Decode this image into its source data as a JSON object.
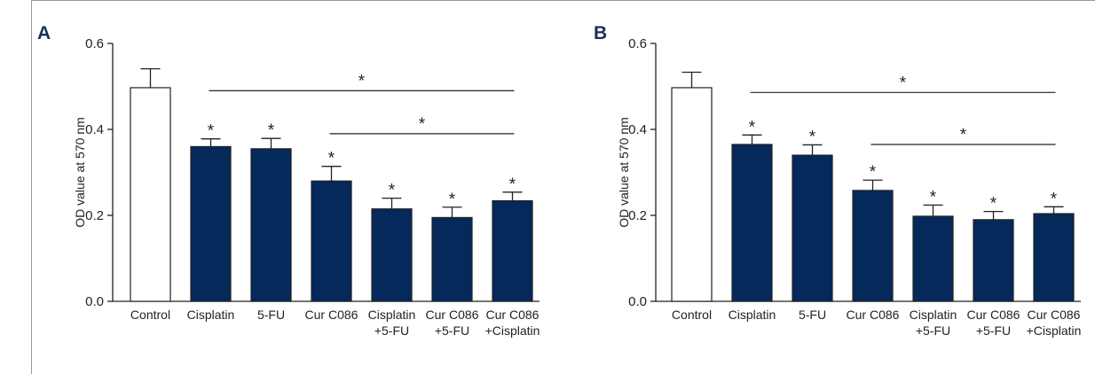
{
  "chart_data": [
    {
      "type": "bar",
      "panel_label": "A",
      "ylabel": "OD value at 570 nm",
      "ylim": [
        0,
        0.6
      ],
      "yticks": [
        "0.0",
        "0.2",
        "0.4",
        "0.6"
      ],
      "categories": [
        [
          "Control"
        ],
        [
          "Cisplatin"
        ],
        [
          "5-FU"
        ],
        [
          "Cur C086"
        ],
        [
          "Cisplatin",
          "+5-FU"
        ],
        [
          "Cur C086",
          "+5-FU"
        ],
        [
          "Cur C086",
          "+Cisplatin"
        ]
      ],
      "values": [
        0.497,
        0.36,
        0.355,
        0.28,
        0.215,
        0.195,
        0.234
      ],
      "errors": [
        0.044,
        0.018,
        0.024,
        0.034,
        0.025,
        0.024,
        0.02
      ],
      "bar_colors": [
        "#ffffff",
        "#04295a",
        "#04295a",
        "#04295a",
        "#04295a",
        "#04295a",
        "#04295a"
      ],
      "significance_marks": [
        null,
        "*",
        "*",
        "*",
        "*",
        "*",
        "*"
      ],
      "brackets": [
        {
          "from": 1,
          "to": 6,
          "y": 0.49,
          "label": "*"
        },
        {
          "from": 3,
          "to": 6,
          "y": 0.39,
          "label": "*"
        }
      ]
    },
    {
      "type": "bar",
      "panel_label": "B",
      "ylabel": "OD value at 570 nm",
      "ylim": [
        0,
        0.6
      ],
      "yticks": [
        "0.0",
        "0.2",
        "0.4",
        "0.6"
      ],
      "categories": [
        [
          "Control"
        ],
        [
          "Cisplatin"
        ],
        [
          "5-FU"
        ],
        [
          "Cur C086"
        ],
        [
          "Cisplatin",
          "+5-FU"
        ],
        [
          "Cur C086",
          "+5-FU"
        ],
        [
          "Cur C086",
          "+Cisplatin"
        ]
      ],
      "values": [
        0.497,
        0.365,
        0.34,
        0.258,
        0.198,
        0.19,
        0.204
      ],
      "errors": [
        0.036,
        0.022,
        0.024,
        0.024,
        0.026,
        0.019,
        0.016
      ],
      "bar_colors": [
        "#ffffff",
        "#04295a",
        "#04295a",
        "#04295a",
        "#04295a",
        "#04295a",
        "#04295a"
      ],
      "significance_marks": [
        null,
        "*",
        "*",
        "*",
        "*",
        "*",
        "*"
      ],
      "brackets": [
        {
          "from": 1,
          "to": 6,
          "y": 0.486,
          "label": "*"
        },
        {
          "from": 3,
          "to": 6,
          "y": 0.365,
          "label": "*"
        }
      ]
    }
  ]
}
